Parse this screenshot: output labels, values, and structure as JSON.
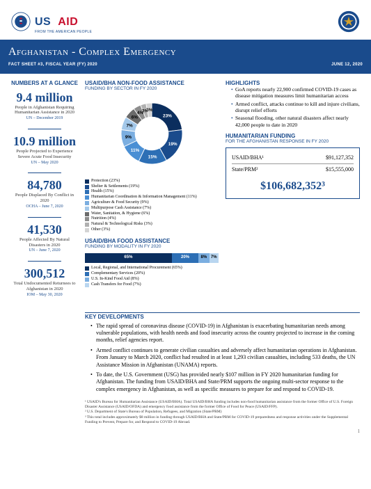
{
  "header": {
    "usaid_main_us": "US",
    "usaid_main_aid": "AID",
    "usaid_sub": "FROM THE AMERICAN PEOPLE",
    "title": "Afghanistan - Complex Emergency",
    "factsheet": "FACT SHEET #3, FISCAL YEAR (FY) 2020",
    "date": "JUNE 12, 2020"
  },
  "glance": {
    "title": "NUMBERS AT A GLANCE",
    "stats": [
      {
        "value": "9.4 million",
        "label": "People in Afghanistan Requiring Humanitarian Assistance in 2020",
        "source": "UN – December 2019"
      },
      {
        "value": "10.9 million",
        "label": "People Projected to Experience Severe Acute Food Insecurity",
        "source": "UN – May 2020"
      },
      {
        "value": "84,780",
        "label": "People Displaced By Conflict in 2020",
        "source": "OCHA – June 7, 2020"
      },
      {
        "value": "41,530",
        "label": "People Affected By Natural Disasters in 2020",
        "source": "UN – June 7, 2020"
      },
      {
        "value": "300,512",
        "label": "Total Undocumented Returnees to Afghanistan in 2020",
        "source": "IOM – May 30, 2020"
      }
    ]
  },
  "nonfood": {
    "title": "USAID/BHA NON-FOOD ASSISTANCE",
    "sub": "FUNDING BY SECTOR IN FY 2020",
    "slices": [
      {
        "label": "Protection (23%)",
        "pct": 23,
        "color": "#0b2e5e",
        "text": "23%"
      },
      {
        "label": "Shelter & Settlements (19%)",
        "pct": 19,
        "color": "#1a4b8c",
        "text": "19%"
      },
      {
        "label": "Health (15%)",
        "pct": 15,
        "color": "#2d6fb5",
        "text": "15%"
      },
      {
        "label": "Humanitarian Coordination & Information Management (11%)",
        "pct": 11,
        "color": "#4a8fd4",
        "text": "11%"
      },
      {
        "label": "Agriculture & Food Security (9%)",
        "pct": 9,
        "color": "#7baee0",
        "text": "9%"
      },
      {
        "label": "Multipurpose Cash Assistance (7%)",
        "pct": 7,
        "color": "#a3c8ea",
        "text": "7%"
      },
      {
        "label": "Water, Sanitation, & Hygiene (6%)",
        "pct": 6,
        "color": "#6b6b6b",
        "text": "6%"
      },
      {
        "label": "Nutrition (4%)",
        "pct": 4,
        "color": "#8d8d8d",
        "text": "4%"
      },
      {
        "label": "Natural & Technological Risks (3%)",
        "pct": 3,
        "color": "#b0b0b0",
        "text": "3%"
      },
      {
        "label": "Other (3%)",
        "pct": 3,
        "color": "#d4d4d4",
        "text": "3%"
      }
    ]
  },
  "food": {
    "title": "USAID/BHA FOOD ASSISTANCE",
    "sub": "FUNDING BY MODALITY IN FY 2020",
    "segs": [
      {
        "label": "Local, Regional, and International Procurement (65%)",
        "pct": 65,
        "color": "#0b2e5e",
        "text": "65%"
      },
      {
        "label": "Complementary Services (20%)",
        "pct": 20,
        "color": "#2d6fb5",
        "text": "20%"
      },
      {
        "label": "U.S. In-Kind Food Aid (8%)",
        "pct": 8,
        "color": "#7baee0",
        "text": "8%"
      },
      {
        "label": "Cash Transfers for Food (7%)",
        "pct": 7,
        "color": "#b9d6f0",
        "text": "7%"
      }
    ]
  },
  "highlights": {
    "title": "HIGHLIGHTS",
    "items": [
      "GoA reports nearly 22,900 confirmed COVID-19 cases as disease mitigation measures limit humanitarian access",
      "Armed conflict, attacks continue to kill and injure civilians, disrupt relief efforts",
      "Seasonal flooding, other natural disasters affect nearly 42,000 people to date in 2020"
    ]
  },
  "funding": {
    "title": "HUMANITARIAN FUNDING",
    "sub": "FOR THE AFGHANISTAN RESPONSE IN FY 2020",
    "rows": [
      {
        "label": "USAID/BHA¹",
        "value": "$91,127,352"
      },
      {
        "label": "State/PRM²",
        "value": "$15,555,000"
      }
    ],
    "total": "$106,682,352³"
  },
  "keydev": {
    "title": "KEY DEVELOPMENTS",
    "items": [
      "The rapid spread of coronavirus disease (COVID-19) in Afghanistan is exacerbating humanitarian needs among vulnerable populations, with health needs and food insecurity across the country projected to increase in the coming months, relief agencies report.",
      "Armed conflict continues to generate civilian casualties and adversely affect humanitarian operations in Afghanistan. From January to March 2020, conflict had resulted in at least 1,293 civilian casualties, including 533 deaths, the UN Assistance Mission in Afghanistan (UNAMA) reports.",
      "To date, the U.S. Government (USG) has provided nearly $107 million in FY 2020 humanitarian funding for Afghanistan. The funding from USAID/BHA and State/PRM supports the ongoing multi-sector response to the complex emergency in Afghanistan, as well as specific measures to prepare for and respond to COVID-19."
    ]
  },
  "footnotes": [
    "¹ USAID's Bureau for Humanitarian Assistance (USAID/BHA). Total USAID/BHA funding includes non-food humanitarian assistance from the former Office of U.S. Foreign Disaster Assistance (USAID/OFDA) and emergency food assistance from the former Office of Food for Peace (USAID/FFP).",
    "² U.S. Department of State's Bureau of Population, Refugees, and Migration (State/PRM)",
    "³ This total includes approximately $8 million in funding through USAID/BHA and State/PRM for COVID-19 preparedness and response activities under the Supplemental Funding to Prevent, Prepare for, and Respond to COVID-19 Abroad."
  ],
  "page_num": "1"
}
